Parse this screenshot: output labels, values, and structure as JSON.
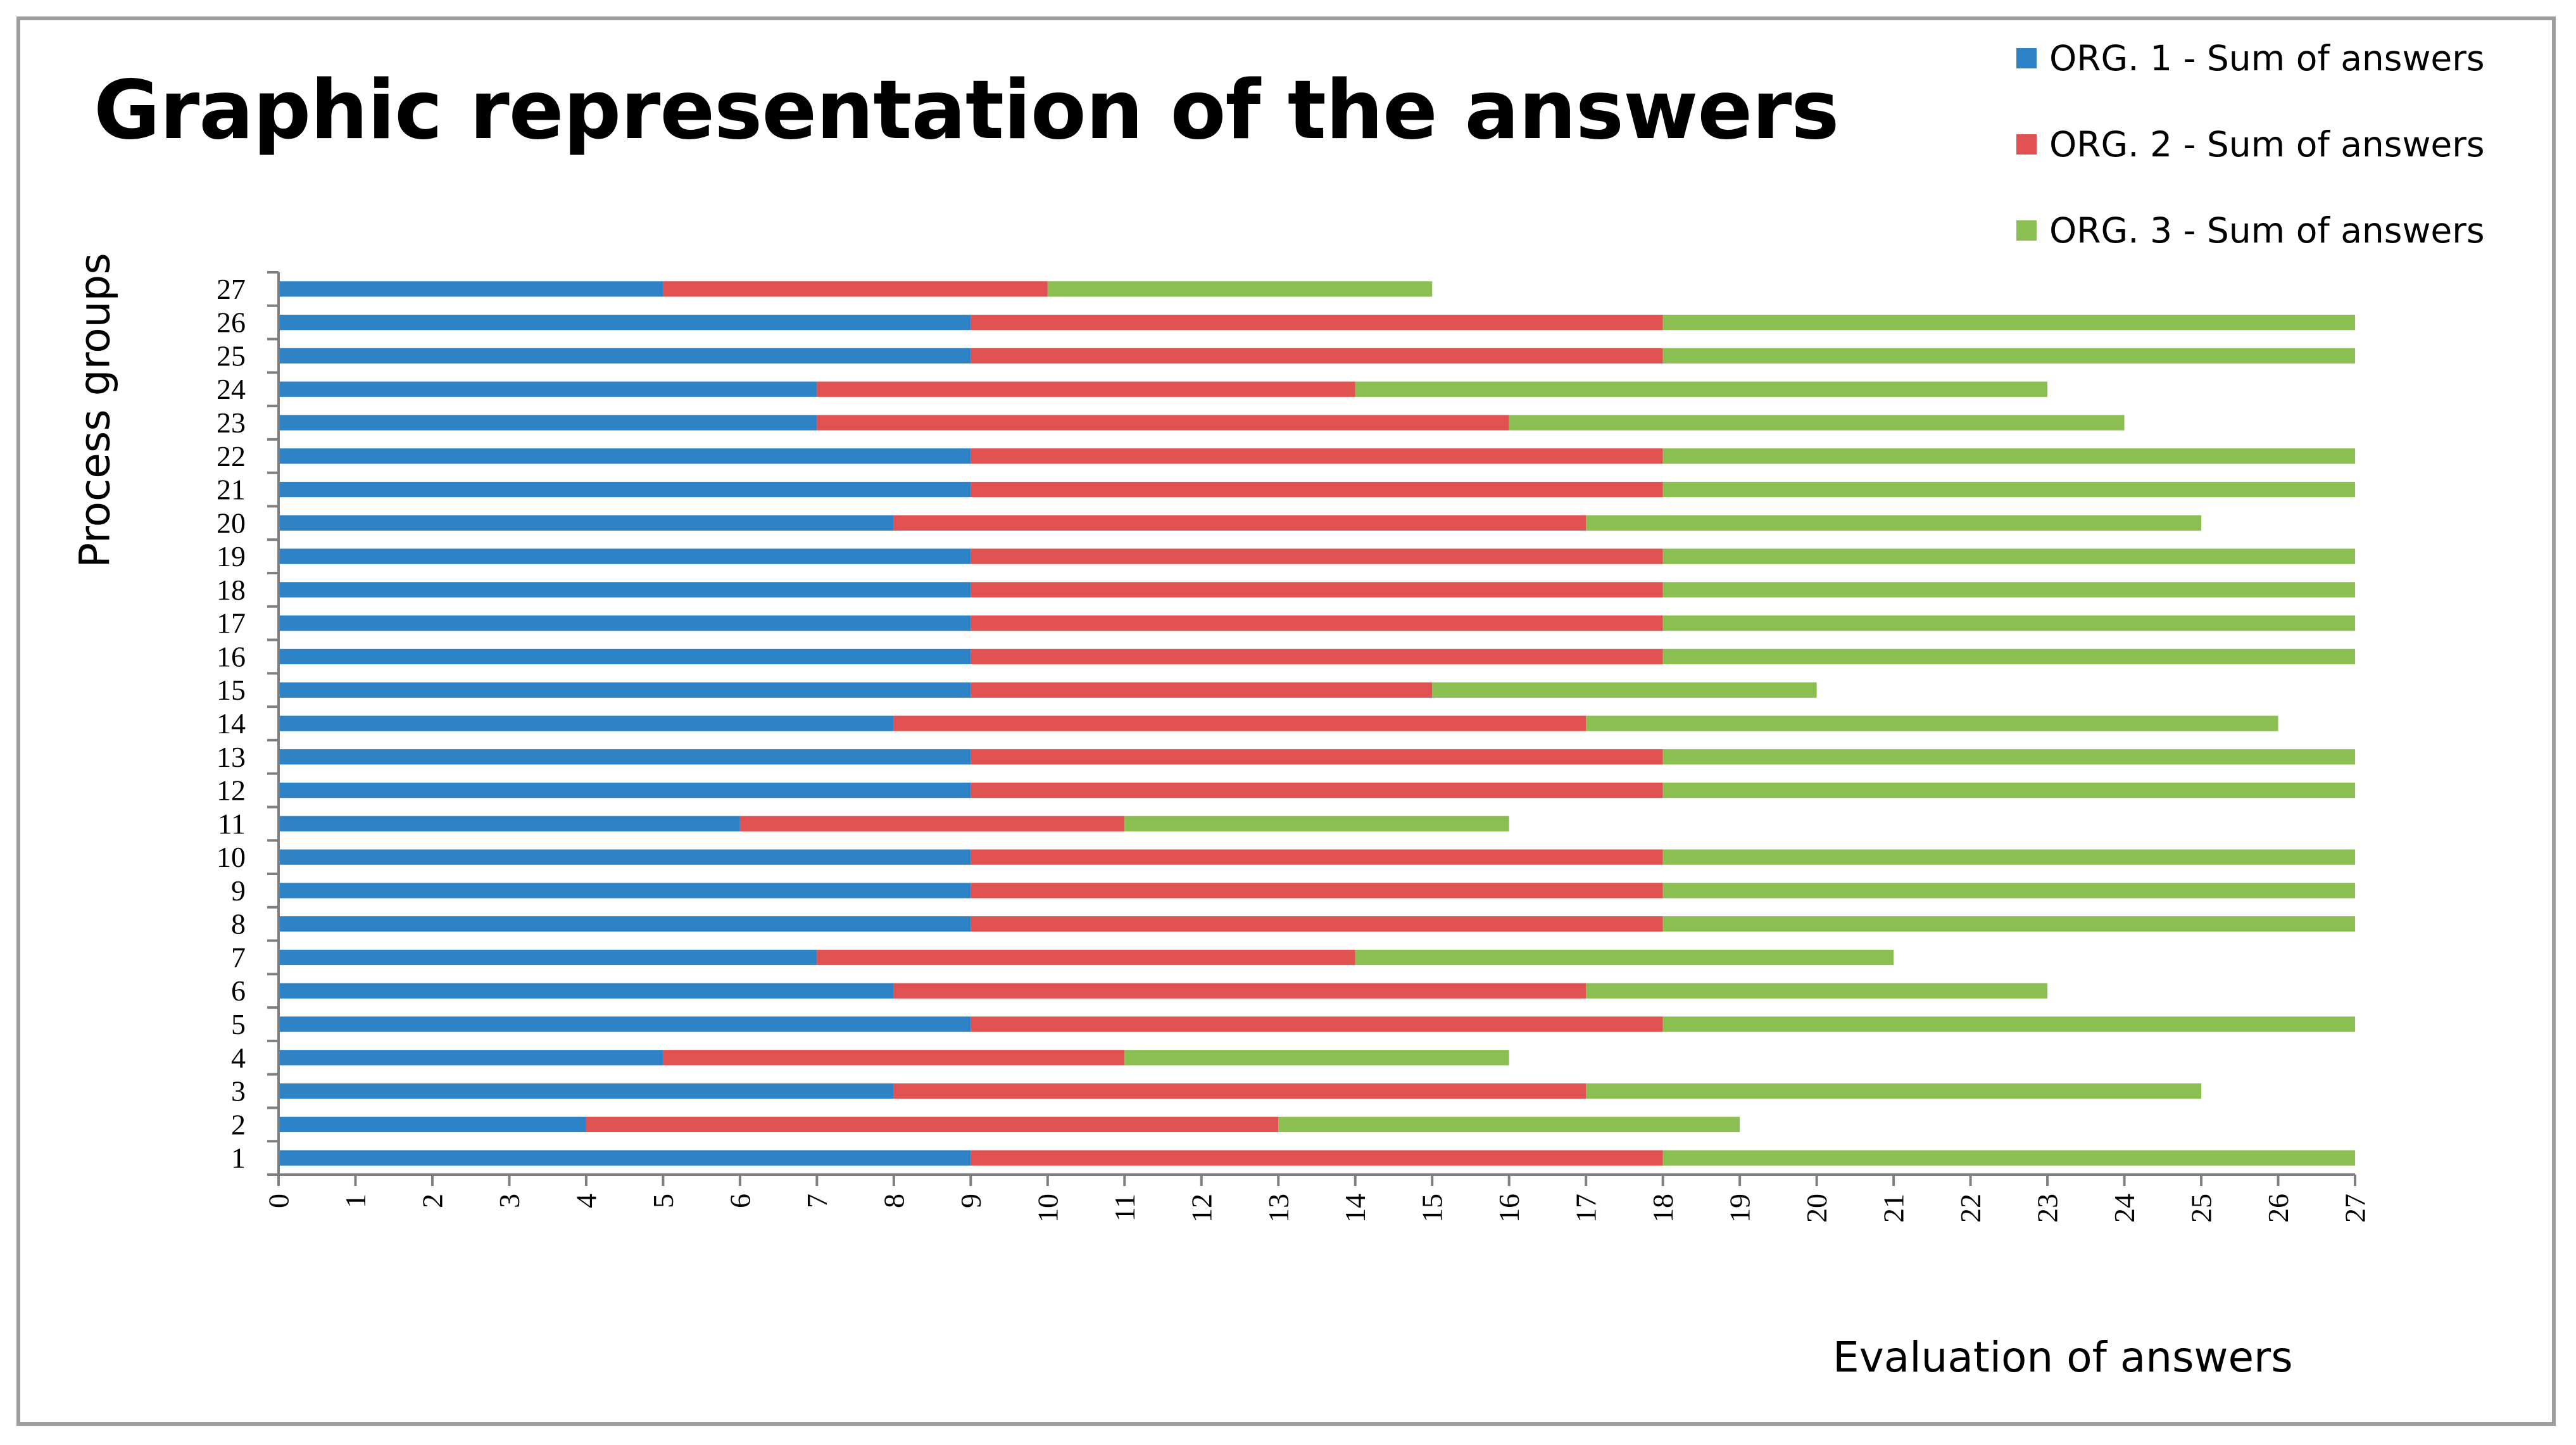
{
  "chart_data": {
    "type": "bar",
    "orientation": "horizontal",
    "stacked": true,
    "title": "Graphic representation of the answers",
    "xlabel": "Evaluation of answers",
    "ylabel": "Process groups",
    "xlim": [
      0,
      27
    ],
    "xticks": [
      "0",
      "1",
      "2",
      "3",
      "4",
      "5",
      "6",
      "7",
      "8",
      "9",
      "10",
      "11",
      "12",
      "13",
      "14",
      "15",
      "16",
      "17",
      "18",
      "19",
      "20",
      "21",
      "22",
      "23",
      "24",
      "25",
      "26",
      "27"
    ],
    "categories": [
      "1",
      "2",
      "3",
      "4",
      "5",
      "6",
      "7",
      "8",
      "9",
      "10",
      "11",
      "12",
      "13",
      "14",
      "15",
      "16",
      "17",
      "18",
      "19",
      "20",
      "21",
      "22",
      "23",
      "24",
      "25",
      "26",
      "27"
    ],
    "legend_position": "top-right",
    "grid": false,
    "series": [
      {
        "name": "ORG. 1 - Sum of answers",
        "color": "#2e83c6",
        "values": [
          9,
          4,
          8,
          5,
          9,
          8,
          7,
          9,
          9,
          9,
          6,
          9,
          9,
          8,
          9,
          9,
          9,
          9,
          9,
          8,
          9,
          9,
          7,
          7,
          9,
          9,
          5
        ]
      },
      {
        "name": "ORG. 2 - Sum of answers",
        "color": "#e05252",
        "values": [
          9,
          9,
          9,
          6,
          9,
          9,
          7,
          9,
          9,
          9,
          5,
          9,
          9,
          9,
          6,
          9,
          9,
          9,
          9,
          9,
          9,
          9,
          9,
          7,
          9,
          9,
          5
        ]
      },
      {
        "name": "ORG. 3 - Sum of answers",
        "color": "#8cbf52",
        "values": [
          9,
          6,
          8,
          5,
          9,
          6,
          7,
          9,
          9,
          9,
          5,
          9,
          9,
          9,
          5,
          9,
          9,
          9,
          9,
          8,
          9,
          9,
          8,
          9,
          9,
          9,
          5
        ]
      }
    ]
  }
}
